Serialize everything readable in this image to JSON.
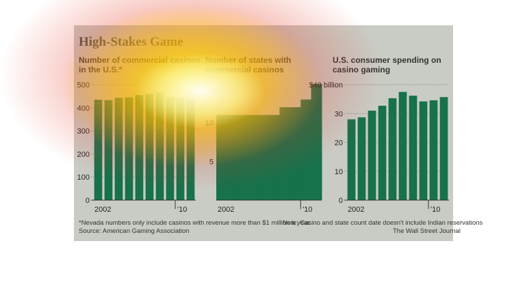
{
  "title": "High-Stakes Game",
  "colors": {
    "bar": "#17714a",
    "panel": "#c9ccc5",
    "title": "#4a5a4a"
  },
  "chart_data": [
    {
      "type": "bar",
      "title": "Number of commercial casinos in the U.S.*",
      "categories": [
        "2002",
        "2003",
        "2004",
        "2005",
        "2006",
        "2007",
        "2008",
        "2009",
        "2010",
        "2011"
      ],
      "values": [
        435,
        433,
        443,
        445,
        455,
        460,
        467,
        445,
        445,
        442
      ],
      "ylim": [
        0,
        500
      ],
      "yticks": [
        "0",
        "100",
        "200",
        "300",
        "400",
        "500"
      ],
      "xtick_labels": {
        "first": "2002",
        "tick": "'10"
      },
      "grid": true
    },
    {
      "type": "bar",
      "title": "Number of states with commercial casinos",
      "categories": [
        "2002",
        "2003",
        "2004",
        "2005",
        "2006",
        "2007",
        "2008",
        "2009",
        "2010",
        "2011"
      ],
      "values": [
        11,
        11,
        11,
        11,
        11,
        11,
        12,
        12,
        13,
        15
      ],
      "ylim": [
        0,
        15
      ],
      "yticks": [
        "5",
        "10"
      ],
      "xtick_labels": {
        "first": "2002",
        "tick": "'10"
      },
      "grid": true
    },
    {
      "type": "bar",
      "title": "U.S. consumer spending on casino gaming",
      "categories": [
        "2002",
        "2003",
        "2004",
        "2005",
        "2006",
        "2007",
        "2008",
        "2009",
        "2010",
        "2011"
      ],
      "values": [
        28,
        28.7,
        31,
        32.7,
        35.3,
        37.5,
        36.2,
        34.2,
        34.6,
        35.7
      ],
      "ylim": [
        0,
        40
      ],
      "yticks": [
        "0",
        "10",
        "20",
        "30",
        "$40 billion"
      ],
      "xtick_labels": {
        "first": "2002",
        "tick": "'10"
      },
      "grid": true
    }
  ],
  "footnotes": {
    "note1": "*Nevada numbers only include casinos with revenue more than $1 million a year.",
    "source": "Source: American Gaming Association",
    "note2": "Note: Casino and state count date doesn't include Indian reservations",
    "publisher": "The Wall Street Journal"
  }
}
